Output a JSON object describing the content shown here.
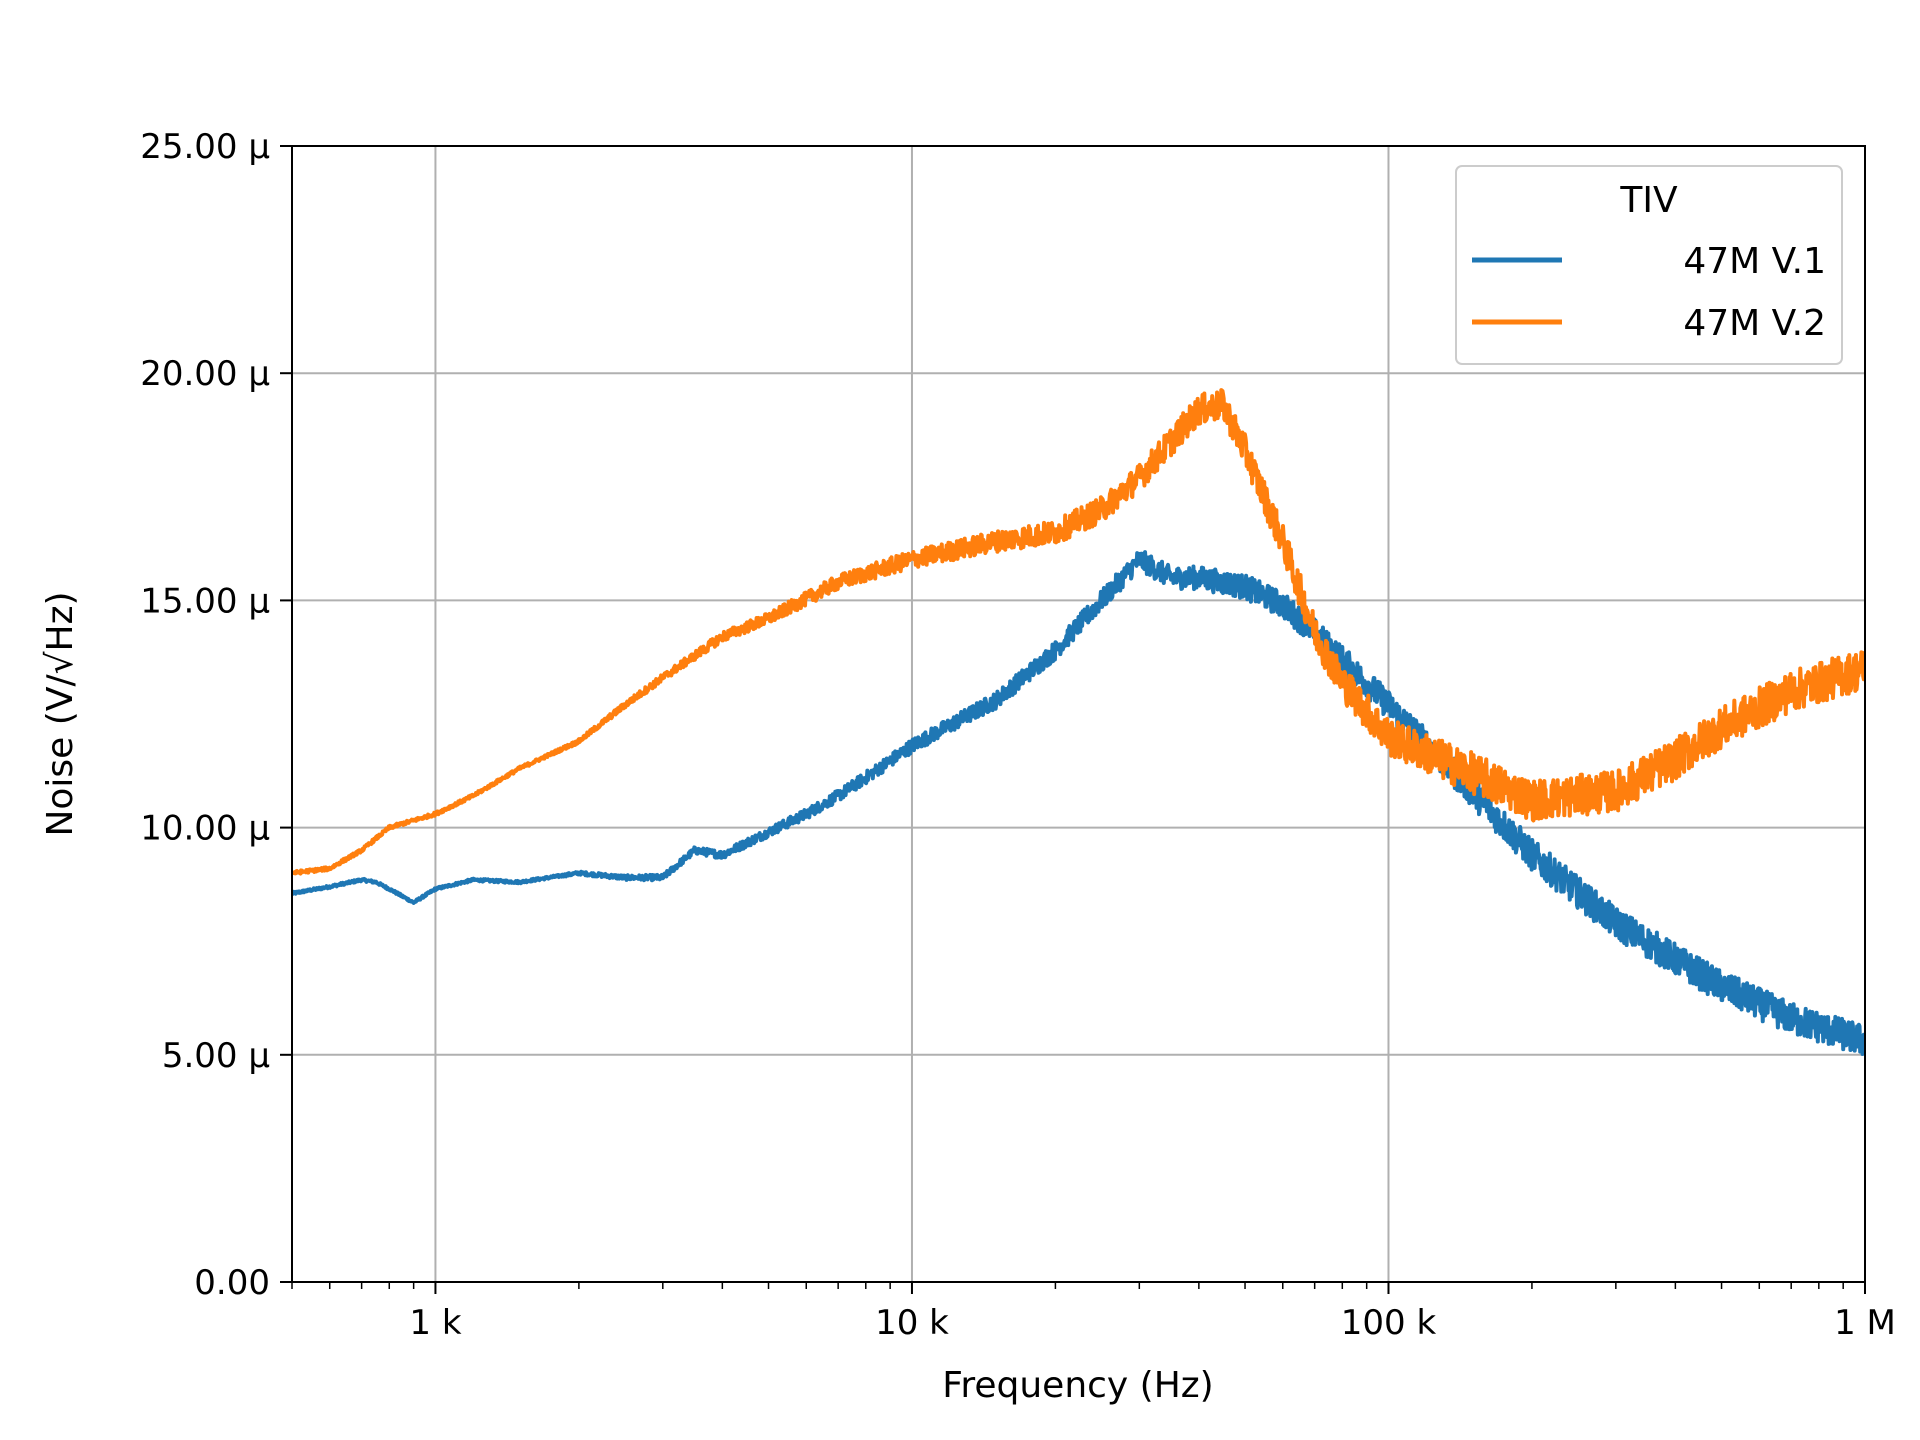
{
  "chart_data": {
    "type": "line",
    "title": "",
    "xlabel": "Frequency (Hz)",
    "ylabel": "Noise (V/√Hz)",
    "x_scale": "log",
    "xlim": [
      500,
      1000000
    ],
    "ylim": [
      0,
      2.5e-05
    ],
    "grid": true,
    "legend_title": "TIV",
    "legend_position": "top-right",
    "x_ticks": [
      1000,
      10000,
      100000,
      1000000
    ],
    "x_tick_labels": [
      "1 k",
      "10 k",
      "100 k",
      "1 M"
    ],
    "y_ticks": [
      0,
      5e-06,
      1e-05,
      1.5e-05,
      2e-05,
      2.5e-05
    ],
    "y_tick_labels": [
      "0.00",
      "5.00 µ",
      "10.00 µ",
      "15.00 µ",
      "20.00 µ",
      "25.00 µ"
    ],
    "series": [
      {
        "name": "47M V.1",
        "color": "#1f77b4",
        "noise_amplitude": 3.5e-07,
        "points": [
          [
            500,
            8.55e-06
          ],
          [
            600,
            8.7e-06
          ],
          [
            700,
            8.85e-06
          ],
          [
            750,
            8.8e-06
          ],
          [
            800,
            8.65e-06
          ],
          [
            900,
            8.35e-06
          ],
          [
            1000,
            8.65e-06
          ],
          [
            1200,
            8.85e-06
          ],
          [
            1500,
            8.8e-06
          ],
          [
            2000,
            9e-06
          ],
          [
            2500,
            8.9e-06
          ],
          [
            3000,
            8.9e-06
          ],
          [
            3500,
            9.5e-06
          ],
          [
            4000,
            9.4e-06
          ],
          [
            5000,
            9.9e-06
          ],
          [
            6000,
            1.03e-05
          ],
          [
            7000,
            1.07e-05
          ],
          [
            8000,
            1.11e-05
          ],
          [
            10000,
            1.18e-05
          ],
          [
            15000,
            1.28e-05
          ],
          [
            20000,
            1.39e-05
          ],
          [
            25000,
            1.5e-05
          ],
          [
            30000,
            1.59e-05
          ],
          [
            35000,
            1.55e-05
          ],
          [
            40000,
            1.55e-05
          ],
          [
            50000,
            1.53e-05
          ],
          [
            60000,
            1.49e-05
          ],
          [
            70000,
            1.43e-05
          ],
          [
            80000,
            1.37e-05
          ],
          [
            100000,
            1.27e-05
          ],
          [
            150000,
            1.08e-05
          ],
          [
            200000,
            9.4e-06
          ],
          [
            300000,
            7.9e-06
          ],
          [
            400000,
            7.1e-06
          ],
          [
            500000,
            6.5e-06
          ],
          [
            700000,
            5.8e-06
          ],
          [
            1000000,
            5.3e-06
          ]
        ]
      },
      {
        "name": "47M V.2",
        "color": "#ff7f0e",
        "noise_amplitude": 4.5e-07,
        "points": [
          [
            500,
            9e-06
          ],
          [
            600,
            9.1e-06
          ],
          [
            700,
            9.5e-06
          ],
          [
            800,
            1e-05
          ],
          [
            1000,
            1.03e-05
          ],
          [
            1200,
            1.07e-05
          ],
          [
            1500,
            1.13e-05
          ],
          [
            2000,
            1.19e-05
          ],
          [
            2500,
            1.27e-05
          ],
          [
            3000,
            1.33e-05
          ],
          [
            4000,
            1.42e-05
          ],
          [
            5000,
            1.46e-05
          ],
          [
            7000,
            1.54e-05
          ],
          [
            10000,
            1.59e-05
          ],
          [
            15000,
            1.63e-05
          ],
          [
            20000,
            1.65e-05
          ],
          [
            25000,
            1.7e-05
          ],
          [
            30000,
            1.77e-05
          ],
          [
            35000,
            1.85e-05
          ],
          [
            40000,
            1.92e-05
          ],
          [
            45000,
            1.93e-05
          ],
          [
            50000,
            1.83e-05
          ],
          [
            60000,
            1.63e-05
          ],
          [
            70000,
            1.43e-05
          ],
          [
            80000,
            1.32e-05
          ],
          [
            100000,
            1.2e-05
          ],
          [
            150000,
            1.12e-05
          ],
          [
            200000,
            1.06e-05
          ],
          [
            300000,
            1.08e-05
          ],
          [
            400000,
            1.15e-05
          ],
          [
            500000,
            1.22e-05
          ],
          [
            700000,
            1.3e-05
          ],
          [
            1000000,
            1.35e-05
          ]
        ]
      }
    ]
  }
}
